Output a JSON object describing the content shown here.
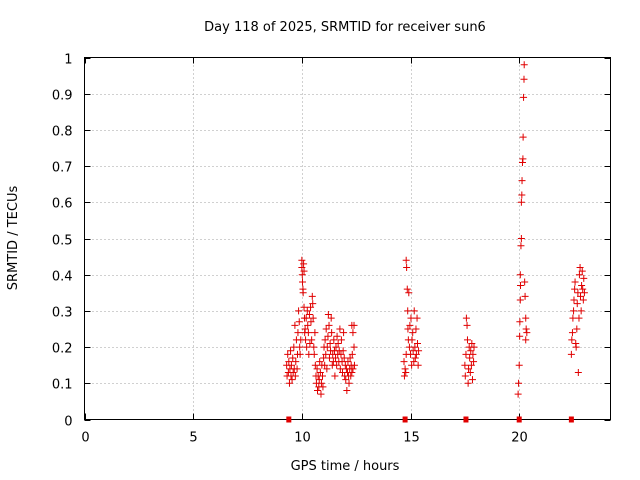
{
  "chart_data": {
    "type": "scatter",
    "title": "Day 118 of 2025, SRMTID for receiver sun6",
    "xlabel": "GPS time / hours",
    "ylabel": "SRMTID / TECUs",
    "xlim": [
      0,
      24.2
    ],
    "ylim": [
      0,
      1
    ],
    "x_ticks": [
      0,
      5,
      10,
      15,
      20
    ],
    "y_ticks": [
      0,
      0.1,
      0.2,
      0.3,
      0.4,
      0.5,
      0.6,
      0.7,
      0.8,
      0.9,
      1
    ],
    "grid": true,
    "marker": "+",
    "marker_color": "#e00000",
    "series": [
      {
        "points": [
          [
            9.3,
            0.15
          ],
          [
            9.32,
            0.12
          ],
          [
            9.35,
            0.18
          ],
          [
            9.38,
            0.13
          ],
          [
            9.4,
            0.16
          ],
          [
            9.43,
            0.1
          ],
          [
            9.45,
            0.14
          ],
          [
            9.48,
            0.19
          ],
          [
            9.5,
            0.12
          ],
          [
            9.52,
            0.15
          ],
          [
            9.55,
            0.11
          ],
          [
            9.58,
            0.17
          ],
          [
            9.6,
            0.13
          ],
          [
            9.63,
            0.2
          ],
          [
            9.65,
            0.14
          ],
          [
            9.68,
            0.26
          ],
          [
            9.7,
            0.12
          ],
          [
            9.72,
            0.16
          ],
          [
            9.75,
            0.22
          ],
          [
            9.78,
            0.14
          ],
          [
            9.8,
            0.18
          ],
          [
            9.82,
            0.24
          ],
          [
            9.85,
            0.3
          ],
          [
            9.88,
            0.27
          ],
          [
            9.9,
            0.2
          ],
          [
            9.92,
            0.18
          ],
          [
            9.95,
            0.22
          ],
          [
            10.0,
            0.44
          ],
          [
            10.0,
            0.42
          ],
          [
            10.02,
            0.4
          ],
          [
            10.03,
            0.38
          ],
          [
            10.05,
            0.36
          ],
          [
            10.06,
            0.35
          ],
          [
            10.08,
            0.43
          ],
          [
            10.1,
            0.41
          ],
          [
            10.1,
            0.31
          ],
          [
            10.12,
            0.28
          ],
          [
            10.13,
            0.24
          ],
          [
            10.15,
            0.25
          ],
          [
            10.17,
            0.22
          ],
          [
            10.2,
            0.28
          ],
          [
            10.22,
            0.2
          ],
          [
            10.25,
            0.3
          ],
          [
            10.27,
            0.26
          ],
          [
            10.3,
            0.24
          ],
          [
            10.32,
            0.18
          ],
          [
            10.35,
            0.29
          ],
          [
            10.37,
            0.21
          ],
          [
            10.4,
            0.31
          ],
          [
            10.42,
            0.27
          ],
          [
            10.45,
            0.22
          ],
          [
            10.48,
            0.34
          ],
          [
            10.5,
            0.32
          ],
          [
            10.52,
            0.28
          ],
          [
            10.55,
            0.2
          ],
          [
            10.57,
            0.18
          ],
          [
            10.6,
            0.24
          ],
          [
            10.62,
            0.15
          ],
          [
            10.65,
            0.12
          ],
          [
            10.67,
            0.1
          ],
          [
            10.7,
            0.14
          ],
          [
            10.72,
            0.08
          ],
          [
            10.75,
            0.12
          ],
          [
            10.78,
            0.09
          ],
          [
            10.8,
            0.11
          ],
          [
            10.82,
            0.16
          ],
          [
            10.85,
            0.13
          ],
          [
            10.88,
            0.07
          ],
          [
            10.9,
            0.1
          ],
          [
            10.92,
            0.15
          ],
          [
            10.95,
            0.12
          ],
          [
            10.97,
            0.09
          ],
          [
            11.0,
            0.17
          ],
          [
            11.02,
            0.2
          ],
          [
            11.05,
            0.15
          ],
          [
            11.07,
            0.22
          ],
          [
            11.1,
            0.18
          ],
          [
            11.12,
            0.25
          ],
          [
            11.15,
            0.14
          ],
          [
            11.17,
            0.2
          ],
          [
            11.2,
            0.23
          ],
          [
            11.22,
            0.29
          ],
          [
            11.25,
            0.26
          ],
          [
            11.27,
            0.17
          ],
          [
            11.3,
            0.21
          ],
          [
            11.32,
            0.19
          ],
          [
            11.35,
            0.28
          ],
          [
            11.37,
            0.24
          ],
          [
            11.4,
            0.15
          ],
          [
            11.42,
            0.18
          ],
          [
            11.45,
            0.16
          ],
          [
            11.47,
            0.22
          ],
          [
            11.5,
            0.19
          ],
          [
            11.52,
            0.12
          ],
          [
            11.55,
            0.17
          ],
          [
            11.57,
            0.2
          ],
          [
            11.6,
            0.15
          ],
          [
            11.62,
            0.23
          ],
          [
            11.65,
            0.18
          ],
          [
            11.67,
            0.21
          ],
          [
            11.7,
            0.16
          ],
          [
            11.72,
            0.19
          ],
          [
            11.75,
            0.25
          ],
          [
            11.77,
            0.14
          ],
          [
            11.8,
            0.18
          ],
          [
            11.82,
            0.22
          ],
          [
            11.85,
            0.16
          ],
          [
            11.87,
            0.13
          ],
          [
            11.9,
            0.19
          ],
          [
            11.92,
            0.24
          ],
          [
            11.95,
            0.17
          ],
          [
            11.97,
            0.12
          ],
          [
            12.0,
            0.15
          ],
          [
            12.02,
            0.11
          ],
          [
            12.05,
            0.14
          ],
          [
            12.07,
            0.08
          ],
          [
            12.1,
            0.13
          ],
          [
            12.12,
            0.16
          ],
          [
            12.15,
            0.12
          ],
          [
            12.17,
            0.1
          ],
          [
            12.2,
            0.14
          ],
          [
            12.22,
            0.17
          ],
          [
            12.25,
            0.12
          ],
          [
            12.27,
            0.15
          ],
          [
            12.3,
            0.13
          ],
          [
            12.32,
            0.18
          ],
          [
            12.35,
            0.14
          ],
          [
            12.3,
            0.26
          ],
          [
            12.35,
            0.24
          ],
          [
            12.4,
            0.26
          ],
          [
            12.4,
            0.2
          ],
          [
            12.42,
            0.15
          ],
          [
            14.7,
            0.16
          ],
          [
            14.72,
            0.12
          ],
          [
            14.75,
            0.14
          ],
          [
            14.78,
            0.13
          ],
          [
            14.8,
            0.18
          ],
          [
            14.8,
            0.44
          ],
          [
            14.82,
            0.42
          ],
          [
            14.85,
            0.36
          ],
          [
            14.87,
            0.3
          ],
          [
            14.88,
            0.25
          ],
          [
            14.9,
            0.22
          ],
          [
            14.92,
            0.35
          ],
          [
            14.95,
            0.2
          ],
          [
            14.97,
            0.26
          ],
          [
            15.0,
            0.18
          ],
          [
            15.02,
            0.28
          ],
          [
            15.05,
            0.15
          ],
          [
            15.07,
            0.22
          ],
          [
            15.1,
            0.24
          ],
          [
            15.12,
            0.19
          ],
          [
            15.15,
            0.16
          ],
          [
            15.17,
            0.3
          ],
          [
            15.2,
            0.2
          ],
          [
            15.22,
            0.17
          ],
          [
            15.25,
            0.25
          ],
          [
            15.27,
            0.18
          ],
          [
            15.3,
            0.28
          ],
          [
            15.32,
            0.21
          ],
          [
            15.35,
            0.15
          ],
          [
            15.37,
            0.19
          ],
          [
            17.5,
            0.15
          ],
          [
            17.52,
            0.12
          ],
          [
            17.55,
            0.18
          ],
          [
            17.57,
            0.28
          ],
          [
            17.6,
            0.26
          ],
          [
            17.62,
            0.22
          ],
          [
            17.65,
            0.1
          ],
          [
            17.67,
            0.14
          ],
          [
            17.7,
            0.2
          ],
          [
            17.72,
            0.17
          ],
          [
            17.75,
            0.13
          ],
          [
            17.77,
            0.19
          ],
          [
            17.8,
            0.15
          ],
          [
            17.82,
            0.21
          ],
          [
            17.85,
            0.11
          ],
          [
            17.87,
            0.18
          ],
          [
            17.9,
            0.16
          ],
          [
            17.92,
            0.2
          ],
          [
            19.95,
            0.07
          ],
          [
            19.97,
            0.1
          ],
          [
            20.0,
            0.15
          ],
          [
            20.02,
            0.23
          ],
          [
            20.03,
            0.27
          ],
          [
            20.05,
            0.33
          ],
          [
            20.05,
            0.4
          ],
          [
            20.06,
            0.37
          ],
          [
            20.08,
            0.48
          ],
          [
            20.1,
            0.5
          ],
          [
            20.1,
            0.6
          ],
          [
            20.12,
            0.62
          ],
          [
            20.13,
            0.66
          ],
          [
            20.15,
            0.71
          ],
          [
            20.17,
            0.72
          ],
          [
            20.18,
            0.78
          ],
          [
            20.2,
            0.89
          ],
          [
            20.22,
            0.94
          ],
          [
            20.23,
            0.98
          ],
          [
            20.25,
            0.38
          ],
          [
            20.27,
            0.34
          ],
          [
            20.3,
            0.28
          ],
          [
            20.32,
            0.25
          ],
          [
            20.35,
            0.24
          ],
          [
            20.3,
            0.22
          ],
          [
            22.4,
            0.18
          ],
          [
            22.42,
            0.22
          ],
          [
            22.45,
            0.24
          ],
          [
            22.47,
            0.28
          ],
          [
            22.5,
            0.3
          ],
          [
            22.52,
            0.33
          ],
          [
            22.55,
            0.36
          ],
          [
            22.57,
            0.38
          ],
          [
            22.6,
            0.21
          ],
          [
            22.62,
            0.2
          ],
          [
            22.65,
            0.25
          ],
          [
            22.67,
            0.32
          ],
          [
            22.7,
            0.35
          ],
          [
            22.72,
            0.13
          ],
          [
            22.75,
            0.28
          ],
          [
            22.77,
            0.4
          ],
          [
            22.8,
            0.42
          ],
          [
            22.82,
            0.34
          ],
          [
            22.85,
            0.3
          ],
          [
            22.87,
            0.37
          ],
          [
            22.9,
            0.41
          ],
          [
            22.92,
            0.36
          ],
          [
            22.95,
            0.33
          ],
          [
            22.97,
            0.39
          ],
          [
            23.0,
            0.35
          ]
        ]
      }
    ],
    "zero_markers_x": [
      9.4,
      14.75,
      17.55,
      20.0,
      22.4
    ]
  }
}
